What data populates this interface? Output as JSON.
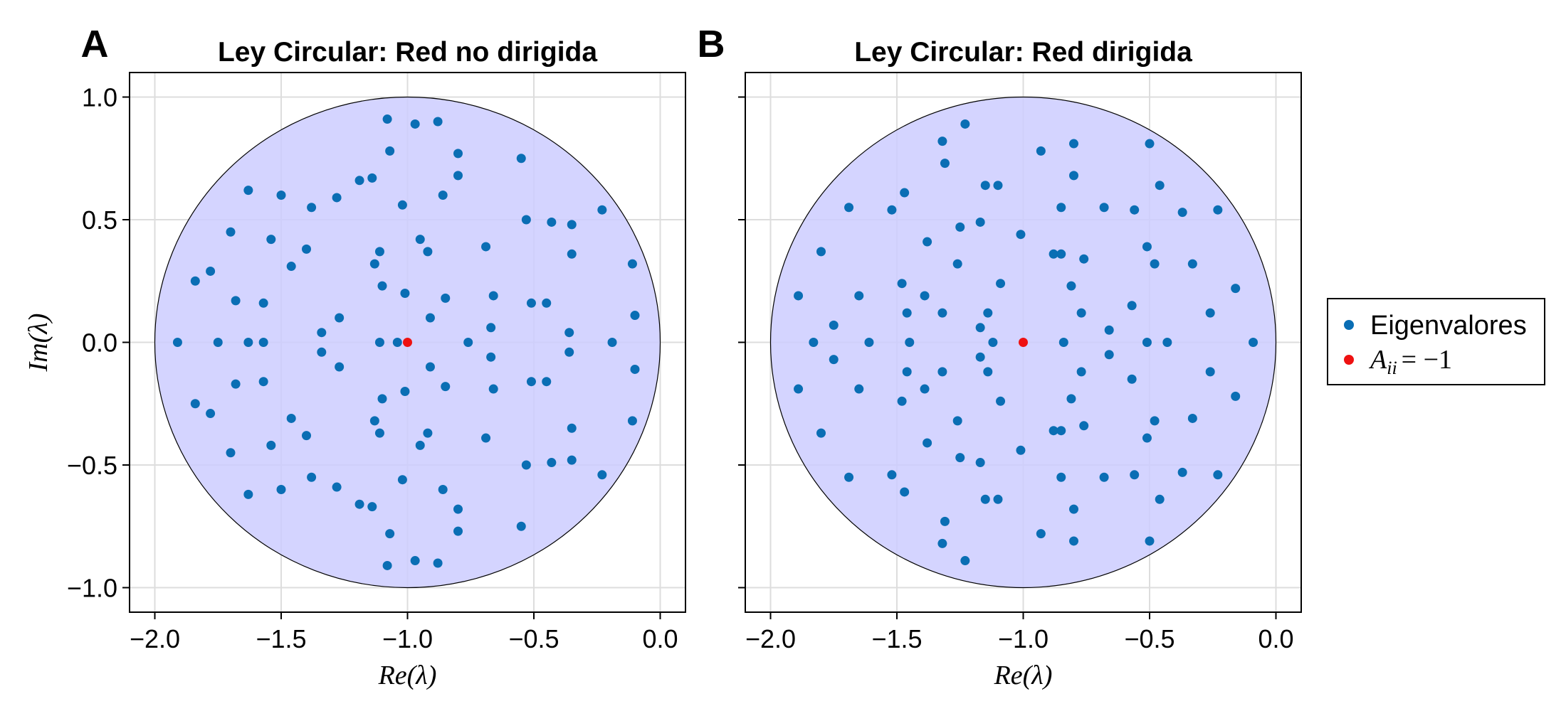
{
  "colors": {
    "eigen": "#0a6eb4",
    "diag": "#ee1111",
    "disk_fill": "#ccccff",
    "disk_stroke": "#000000",
    "grid": "#dddddd"
  },
  "legend": {
    "items": [
      {
        "label": "Eigenvalores",
        "marker": "eigen"
      },
      {
        "label_main": "A",
        "label_sub": "ii",
        "label_rest": "= −1",
        "marker": "diag"
      }
    ]
  },
  "chart_data": [
    {
      "type": "scatter",
      "panel_letter": "A",
      "title": "Ley Circular: Red no dirigida",
      "xlabel": "Re(λ)",
      "ylabel": "Im(λ)",
      "xlim": [
        -2.1,
        0.1
      ],
      "ylim": [
        -1.1,
        1.1
      ],
      "xticks": [
        -2.0,
        -1.5,
        -1.0,
        -0.5,
        0.0
      ],
      "xtick_labels": [
        "−2.0",
        "−1.5",
        "−1.0",
        "−0.5",
        "0.0"
      ],
      "yticks": [
        -1.0,
        -0.5,
        0.0,
        0.5,
        1.0
      ],
      "ytick_labels": [
        "−1.0",
        "−0.5",
        "0.0",
        "0.5",
        "1.0"
      ],
      "grid": true,
      "circle": {
        "center": [
          -1.0,
          0.0
        ],
        "radius": 1.0
      },
      "series": [
        {
          "name": "Eigenvalores",
          "points": [
            [
              -1.91,
              0.0
            ],
            [
              -1.84,
              0.25
            ],
            [
              -1.84,
              -0.25
            ],
            [
              -1.78,
              0.29
            ],
            [
              -1.78,
              -0.29
            ],
            [
              -1.75,
              0.0
            ],
            [
              -1.7,
              0.45
            ],
            [
              -1.7,
              -0.45
            ],
            [
              -1.68,
              0.17
            ],
            [
              -1.68,
              -0.17
            ],
            [
              -1.63,
              0.62
            ],
            [
              -1.63,
              -0.62
            ],
            [
              -1.63,
              0.0
            ],
            [
              -1.57,
              0.16
            ],
            [
              -1.57,
              -0.16
            ],
            [
              -1.57,
              0.0
            ],
            [
              -1.54,
              0.42
            ],
            [
              -1.54,
              -0.42
            ],
            [
              -1.5,
              0.6
            ],
            [
              -1.5,
              -0.6
            ],
            [
              -1.46,
              0.31
            ],
            [
              -1.46,
              -0.31
            ],
            [
              -1.4,
              0.38
            ],
            [
              -1.4,
              -0.38
            ],
            [
              -1.38,
              0.55
            ],
            [
              -1.38,
              -0.55
            ],
            [
              -1.34,
              0.04
            ],
            [
              -1.34,
              -0.04
            ],
            [
              -1.28,
              0.59
            ],
            [
              -1.28,
              -0.59
            ],
            [
              -1.27,
              0.1
            ],
            [
              -1.27,
              -0.1
            ],
            [
              -1.19,
              0.66
            ],
            [
              -1.19,
              -0.66
            ],
            [
              -1.14,
              0.67
            ],
            [
              -1.14,
              -0.67
            ],
            [
              -1.13,
              0.32
            ],
            [
              -1.13,
              -0.32
            ],
            [
              -1.11,
              0.37
            ],
            [
              -1.11,
              -0.37
            ],
            [
              -1.1,
              0.23
            ],
            [
              -1.1,
              -0.23
            ],
            [
              -1.11,
              0.0
            ],
            [
              -1.08,
              0.91
            ],
            [
              -1.08,
              -0.91
            ],
            [
              -1.07,
              0.78
            ],
            [
              -1.07,
              -0.78
            ],
            [
              -1.04,
              0.0
            ],
            [
              -1.02,
              0.56
            ],
            [
              -1.02,
              -0.56
            ],
            [
              -1.01,
              0.2
            ],
            [
              -1.01,
              -0.2
            ],
            [
              -0.97,
              0.89
            ],
            [
              -0.97,
              -0.89
            ],
            [
              -0.95,
              0.42
            ],
            [
              -0.95,
              -0.42
            ],
            [
              -0.92,
              0.37
            ],
            [
              -0.92,
              -0.37
            ],
            [
              -0.91,
              0.1
            ],
            [
              -0.91,
              -0.1
            ],
            [
              -0.88,
              0.9
            ],
            [
              -0.88,
              -0.9
            ],
            [
              -0.86,
              0.6
            ],
            [
              -0.86,
              -0.6
            ],
            [
              -0.85,
              0.18
            ],
            [
              -0.85,
              -0.18
            ],
            [
              -0.8,
              0.77
            ],
            [
              -0.8,
              -0.77
            ],
            [
              -0.8,
              0.68
            ],
            [
              -0.8,
              -0.68
            ],
            [
              -0.76,
              0.0
            ],
            [
              -0.69,
              0.39
            ],
            [
              -0.69,
              -0.39
            ],
            [
              -0.67,
              0.06
            ],
            [
              -0.67,
              -0.06
            ],
            [
              -0.66,
              0.19
            ],
            [
              -0.66,
              -0.19
            ],
            [
              -0.55,
              0.75
            ],
            [
              -0.55,
              -0.75
            ],
            [
              -0.53,
              0.5
            ],
            [
              -0.53,
              -0.5
            ],
            [
              -0.51,
              0.16
            ],
            [
              -0.51,
              -0.16
            ],
            [
              -0.45,
              0.16
            ],
            [
              -0.45,
              -0.16
            ],
            [
              -0.43,
              0.49
            ],
            [
              -0.43,
              -0.49
            ],
            [
              -0.36,
              0.04
            ],
            [
              -0.36,
              -0.04
            ],
            [
              -0.35,
              0.48
            ],
            [
              -0.35,
              -0.48
            ],
            [
              -0.35,
              0.36
            ],
            [
              -0.35,
              -0.35
            ],
            [
              -0.23,
              0.54
            ],
            [
              -0.23,
              -0.54
            ],
            [
              -0.19,
              0.0
            ],
            [
              -0.11,
              0.32
            ],
            [
              -0.11,
              -0.32
            ],
            [
              -0.1,
              0.11
            ],
            [
              -0.1,
              -0.11
            ]
          ]
        },
        {
          "name": "A_ii = −1",
          "points": [
            [
              -1.0,
              0.0
            ]
          ]
        }
      ]
    },
    {
      "type": "scatter",
      "panel_letter": "B",
      "title": "Ley Circular: Red dirigida",
      "xlabel": "Re(λ)",
      "ylabel": "",
      "xlim": [
        -2.1,
        0.1
      ],
      "ylim": [
        -1.1,
        1.1
      ],
      "xticks": [
        -2.0,
        -1.5,
        -1.0,
        -0.5,
        0.0
      ],
      "xtick_labels": [
        "−2.0",
        "−1.5",
        "−1.0",
        "−0.5",
        "0.0"
      ],
      "yticks": [
        -1.0,
        -0.5,
        0.0,
        0.5,
        1.0
      ],
      "ytick_labels": [],
      "grid": true,
      "circle": {
        "center": [
          -1.0,
          0.0
        ],
        "radius": 1.0
      },
      "series": [
        {
          "name": "Eigenvalores",
          "points": [
            [
              -1.89,
              0.19
            ],
            [
              -1.89,
              -0.19
            ],
            [
              -1.83,
              0.0
            ],
            [
              -1.8,
              0.37
            ],
            [
              -1.8,
              -0.37
            ],
            [
              -1.75,
              0.07
            ],
            [
              -1.75,
              -0.07
            ],
            [
              -1.69,
              0.55
            ],
            [
              -1.69,
              -0.55
            ],
            [
              -1.65,
              0.19
            ],
            [
              -1.65,
              -0.19
            ],
            [
              -1.61,
              0.0
            ],
            [
              -1.52,
              0.54
            ],
            [
              -1.52,
              -0.54
            ],
            [
              -1.48,
              0.24
            ],
            [
              -1.48,
              -0.24
            ],
            [
              -1.47,
              0.61
            ],
            [
              -1.47,
              -0.61
            ],
            [
              -1.46,
              0.12
            ],
            [
              -1.46,
              -0.12
            ],
            [
              -1.45,
              0.0
            ],
            [
              -1.39,
              0.19
            ],
            [
              -1.39,
              -0.19
            ],
            [
              -1.38,
              0.41
            ],
            [
              -1.38,
              -0.41
            ],
            [
              -1.32,
              0.82
            ],
            [
              -1.32,
              -0.82
            ],
            [
              -1.31,
              0.73
            ],
            [
              -1.31,
              -0.73
            ],
            [
              -1.32,
              0.12
            ],
            [
              -1.32,
              -0.12
            ],
            [
              -1.25,
              0.47
            ],
            [
              -1.25,
              -0.47
            ],
            [
              -1.26,
              0.32
            ],
            [
              -1.26,
              -0.32
            ],
            [
              -1.23,
              0.89
            ],
            [
              -1.23,
              -0.89
            ],
            [
              -1.17,
              0.49
            ],
            [
              -1.17,
              -0.49
            ],
            [
              -1.17,
              0.06
            ],
            [
              -1.17,
              -0.06
            ],
            [
              -1.15,
              0.64
            ],
            [
              -1.15,
              -0.64
            ],
            [
              -1.14,
              0.12
            ],
            [
              -1.14,
              -0.12
            ],
            [
              -1.12,
              0.0
            ],
            [
              -1.1,
              0.64
            ],
            [
              -1.1,
              -0.64
            ],
            [
              -1.09,
              0.24
            ],
            [
              -1.09,
              -0.24
            ],
            [
              -1.01,
              0.44
            ],
            [
              -1.01,
              -0.44
            ],
            [
              -0.93,
              0.78
            ],
            [
              -0.93,
              -0.78
            ],
            [
              -0.88,
              0.36
            ],
            [
              -0.88,
              -0.36
            ],
            [
              -0.85,
              0.55
            ],
            [
              -0.85,
              -0.55
            ],
            [
              -0.85,
              0.36
            ],
            [
              -0.85,
              -0.36
            ],
            [
              -0.84,
              0.0
            ],
            [
              -0.81,
              0.23
            ],
            [
              -0.81,
              -0.23
            ],
            [
              -0.8,
              0.81
            ],
            [
              -0.8,
              -0.81
            ],
            [
              -0.8,
              0.68
            ],
            [
              -0.8,
              -0.68
            ],
            [
              -0.77,
              0.12
            ],
            [
              -0.77,
              -0.12
            ],
            [
              -0.76,
              0.34
            ],
            [
              -0.76,
              -0.34
            ],
            [
              -0.68,
              0.55
            ],
            [
              -0.68,
              -0.55
            ],
            [
              -0.66,
              0.05
            ],
            [
              -0.66,
              -0.05
            ],
            [
              -0.57,
              0.15
            ],
            [
              -0.57,
              -0.15
            ],
            [
              -0.56,
              0.54
            ],
            [
              -0.56,
              -0.54
            ],
            [
              -0.51,
              0.39
            ],
            [
              -0.51,
              -0.39
            ],
            [
              -0.51,
              0.0
            ],
            [
              -0.5,
              0.81
            ],
            [
              -0.5,
              -0.81
            ],
            [
              -0.48,
              0.32
            ],
            [
              -0.48,
              -0.32
            ],
            [
              -0.46,
              0.64
            ],
            [
              -0.46,
              -0.64
            ],
            [
              -0.43,
              0.0
            ],
            [
              -0.37,
              0.53
            ],
            [
              -0.37,
              -0.53
            ],
            [
              -0.33,
              0.32
            ],
            [
              -0.33,
              -0.31
            ],
            [
              -0.26,
              0.12
            ],
            [
              -0.26,
              -0.12
            ],
            [
              -0.23,
              0.54
            ],
            [
              -0.23,
              -0.54
            ],
            [
              -0.16,
              0.22
            ],
            [
              -0.16,
              -0.22
            ],
            [
              -0.09,
              0.0
            ]
          ]
        },
        {
          "name": "A_ii = −1",
          "points": [
            [
              -1.0,
              0.0
            ]
          ]
        }
      ]
    }
  ]
}
